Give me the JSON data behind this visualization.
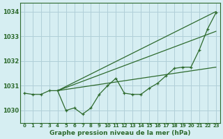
{
  "title": "Graphe pression niveau de la mer (hPa)",
  "background_color": "#d6eef2",
  "grid_color": "#b0cfd8",
  "line_color": "#2d6a2d",
  "xlim": [
    -0.5,
    23.5
  ],
  "ylim": [
    1029.5,
    1034.35
  ],
  "xticks": [
    0,
    1,
    2,
    3,
    4,
    5,
    6,
    7,
    8,
    9,
    10,
    11,
    12,
    13,
    14,
    15,
    16,
    17,
    18,
    19,
    20,
    21,
    22,
    23
  ],
  "yticks": [
    1030,
    1031,
    1032,
    1033,
    1034
  ],
  "measured": [
    1030.7,
    1030.65,
    1030.65,
    1030.8,
    1030.8,
    1030.0,
    1030.1,
    1029.85,
    1030.1,
    1030.65,
    1031.0,
    1031.3,
    1030.7,
    1030.65,
    1030.65,
    1030.9,
    1031.1,
    1031.4,
    1031.7,
    1031.75,
    1031.75,
    1032.45,
    1033.3,
    1033.95
  ],
  "trend_lines": [
    {
      "x0": 4,
      "y0": 1030.8,
      "x1": 23,
      "y1": 1034.0
    },
    {
      "x0": 4,
      "y0": 1030.8,
      "x1": 23,
      "y1": 1033.2
    },
    {
      "x0": 4,
      "y0": 1030.8,
      "x1": 23,
      "y1": 1031.75
    }
  ]
}
